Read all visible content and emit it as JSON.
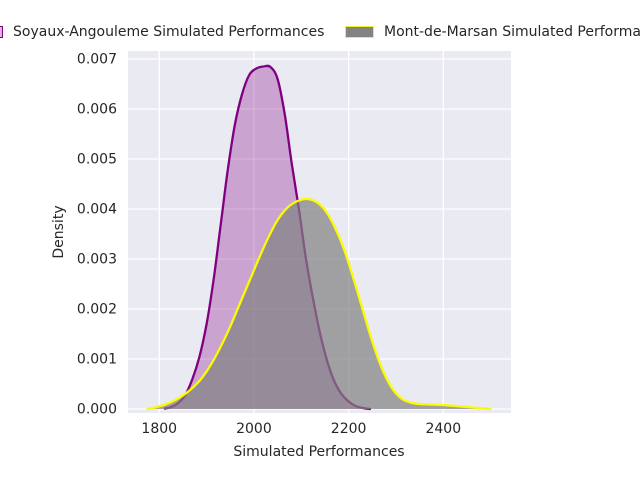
{
  "figure": {
    "background": "#FFFFFF"
  },
  "legend": {
    "items": [
      {
        "label": "Soyaux-Angouleme Simulated Performances",
        "swatch_fill": "#DAB5DC",
        "swatch_edge": "#800080"
      },
      {
        "label": "Mont-de-Marsan Simulated Performances",
        "swatch_fill": "#838383",
        "swatch_edge": "#F0F030"
      }
    ]
  },
  "chart_data": {
    "type": "area",
    "subtype": "kde-density",
    "title": "",
    "xlabel": "Simulated Performances",
    "ylabel": "Density",
    "xlim": [
      1734,
      2543
    ],
    "ylim": [
      -8e-05,
      0.00716
    ],
    "grid": true,
    "plot_bg": "#EAEAF2",
    "grid_color": "#FFFFFF",
    "text_color": "#262626",
    "legend_position": "above-plot",
    "x_ticks": [
      {
        "v": 1800,
        "label": "1800"
      },
      {
        "v": 2000,
        "label": "2000"
      },
      {
        "v": 2200,
        "label": "2200"
      },
      {
        "v": 2400,
        "label": "2400"
      }
    ],
    "y_ticks": [
      {
        "v": 0.0,
        "label": "0.000"
      },
      {
        "v": 0.001,
        "label": "0.001"
      },
      {
        "v": 0.002,
        "label": "0.002"
      },
      {
        "v": 0.003,
        "label": "0.003"
      },
      {
        "v": 0.004,
        "label": "0.004"
      },
      {
        "v": 0.005,
        "label": "0.005"
      },
      {
        "v": 0.006,
        "label": "0.006"
      },
      {
        "v": 0.007,
        "label": "0.007"
      }
    ],
    "series": [
      {
        "name": "Soyaux-Angouleme Simulated Performances",
        "line_color": "#800080",
        "fill_color": "rgba(128,0,128,0.30)",
        "peak": {
          "x": 2030,
          "density": 0.00685
        },
        "points": [
          [
            1812,
            1e-05
          ],
          [
            1825,
            4e-05
          ],
          [
            1840,
            0.00012
          ],
          [
            1855,
            0.00028
          ],
          [
            1870,
            0.0006
          ],
          [
            1885,
            0.00105
          ],
          [
            1900,
            0.0017
          ],
          [
            1915,
            0.0026
          ],
          [
            1930,
            0.0037
          ],
          [
            1945,
            0.0048
          ],
          [
            1960,
            0.0057
          ],
          [
            1975,
            0.0063
          ],
          [
            1990,
            0.00668
          ],
          [
            2005,
            0.00681
          ],
          [
            2020,
            0.00685
          ],
          [
            2035,
            0.00684
          ],
          [
            2050,
            0.0066
          ],
          [
            2065,
            0.0059
          ],
          [
            2080,
            0.0049
          ],
          [
            2095,
            0.004
          ],
          [
            2110,
            0.003
          ],
          [
            2125,
            0.0022
          ],
          [
            2140,
            0.0015
          ],
          [
            2155,
            0.00095
          ],
          [
            2170,
            0.00055
          ],
          [
            2185,
            0.0003
          ],
          [
            2200,
            0.00015
          ],
          [
            2215,
            6e-05
          ],
          [
            2230,
            2e-05
          ],
          [
            2245,
            0
          ]
        ]
      },
      {
        "name": "Mont-de-Marsan Simulated Performances",
        "line_color": "#FBFB00",
        "fill_color": "rgba(128,128,128,0.70)",
        "peak": {
          "x": 2110,
          "density": 0.0042
        },
        "points": [
          [
            1775,
            0
          ],
          [
            1790,
            3e-05
          ],
          [
            1810,
            8e-05
          ],
          [
            1830,
            0.00016
          ],
          [
            1850,
            0.00027
          ],
          [
            1870,
            0.00042
          ],
          [
            1890,
            0.00062
          ],
          [
            1910,
            0.0009
          ],
          [
            1930,
            0.00125
          ],
          [
            1950,
            0.00165
          ],
          [
            1970,
            0.0021
          ],
          [
            1990,
            0.00255
          ],
          [
            2010,
            0.003
          ],
          [
            2030,
            0.00342
          ],
          [
            2050,
            0.00378
          ],
          [
            2070,
            0.00402
          ],
          [
            2090,
            0.00415
          ],
          [
            2110,
            0.0042
          ],
          [
            2130,
            0.00415
          ],
          [
            2150,
            0.00398
          ],
          [
            2170,
            0.00365
          ],
          [
            2190,
            0.0032
          ],
          [
            2210,
            0.00262
          ],
          [
            2230,
            0.00198
          ],
          [
            2250,
            0.00135
          ],
          [
            2270,
            0.00082
          ],
          [
            2290,
            0.00044
          ],
          [
            2310,
            0.00022
          ],
          [
            2330,
            0.00013
          ],
          [
            2350,
            0.0001
          ],
          [
            2375,
            9e-05
          ],
          [
            2400,
            8e-05
          ],
          [
            2425,
            6e-05
          ],
          [
            2450,
            4e-05
          ],
          [
            2475,
            2e-05
          ],
          [
            2500,
            0
          ]
        ]
      }
    ]
  }
}
